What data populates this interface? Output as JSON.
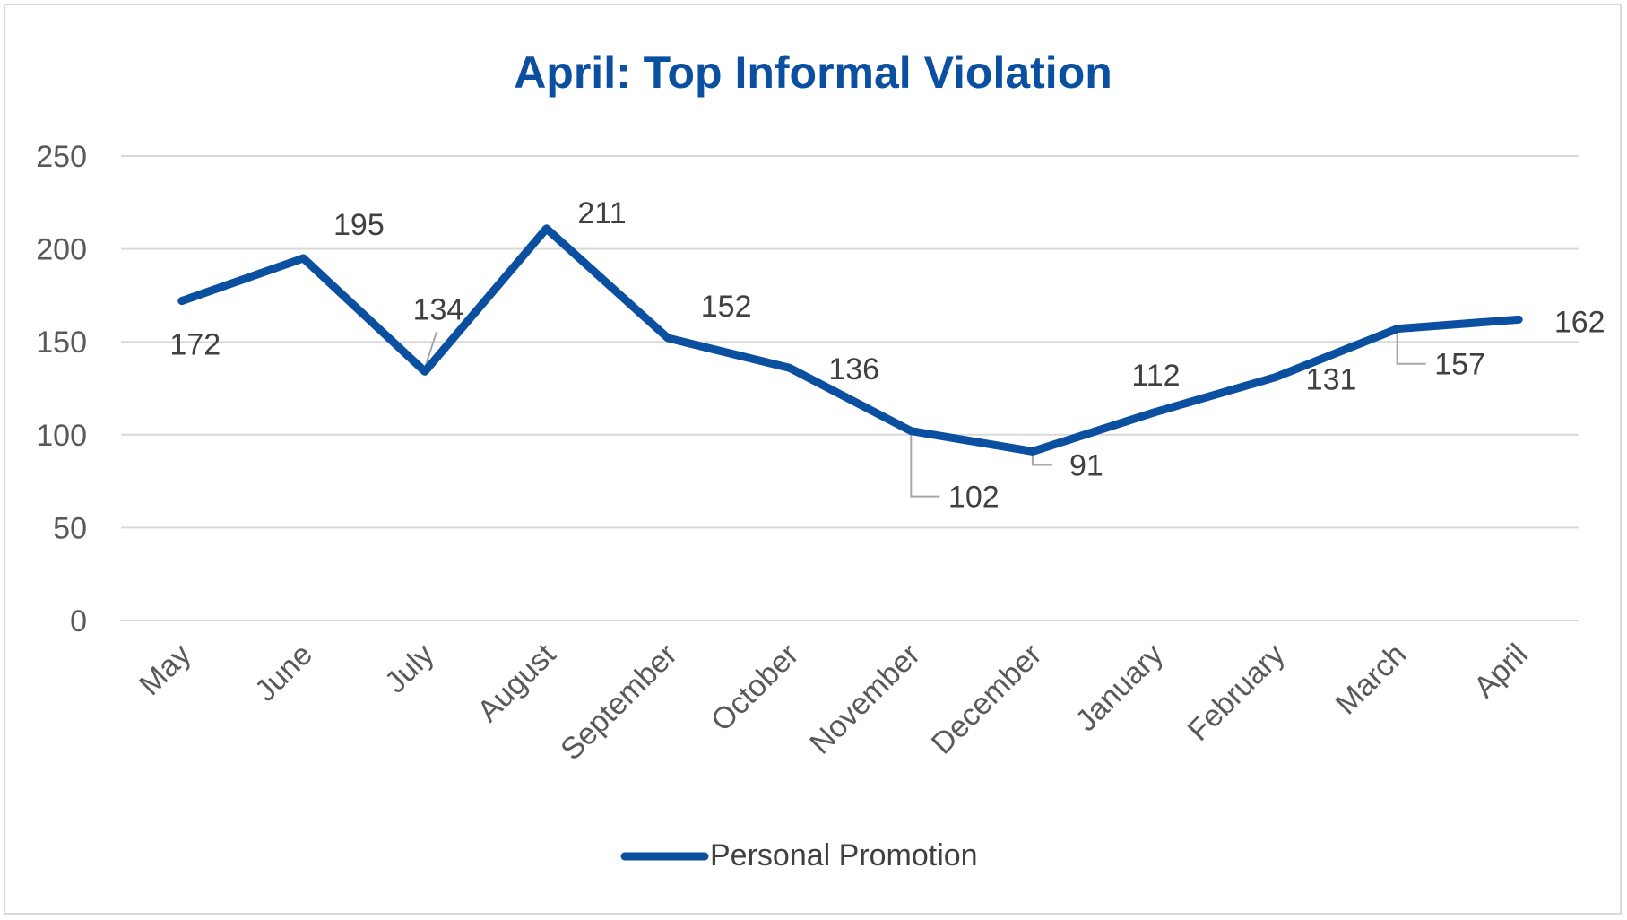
{
  "chart_data": {
    "type": "line",
    "title": "April: Top Informal Violation",
    "xlabel": "",
    "ylabel": "",
    "categories": [
      "May",
      "June",
      "July",
      "August",
      "September",
      "October",
      "November",
      "December",
      "January",
      "February",
      "March",
      "April"
    ],
    "series": [
      {
        "name": "Personal Promotion",
        "values": [
          172,
          195,
          134,
          211,
          152,
          136,
          102,
          91,
          112,
          131,
          157,
          162
        ]
      }
    ],
    "ylim": [
      0,
      250
    ],
    "yticks": [
      "0",
      "50",
      "100",
      "150",
      "200",
      "250"
    ],
    "grid": true,
    "legend_position": "bottom",
    "colors": {
      "series": "#0b4fa0",
      "grid": "#d9d9d9",
      "title": "#0b4fa0",
      "leader": "#a6a6a6"
    }
  }
}
